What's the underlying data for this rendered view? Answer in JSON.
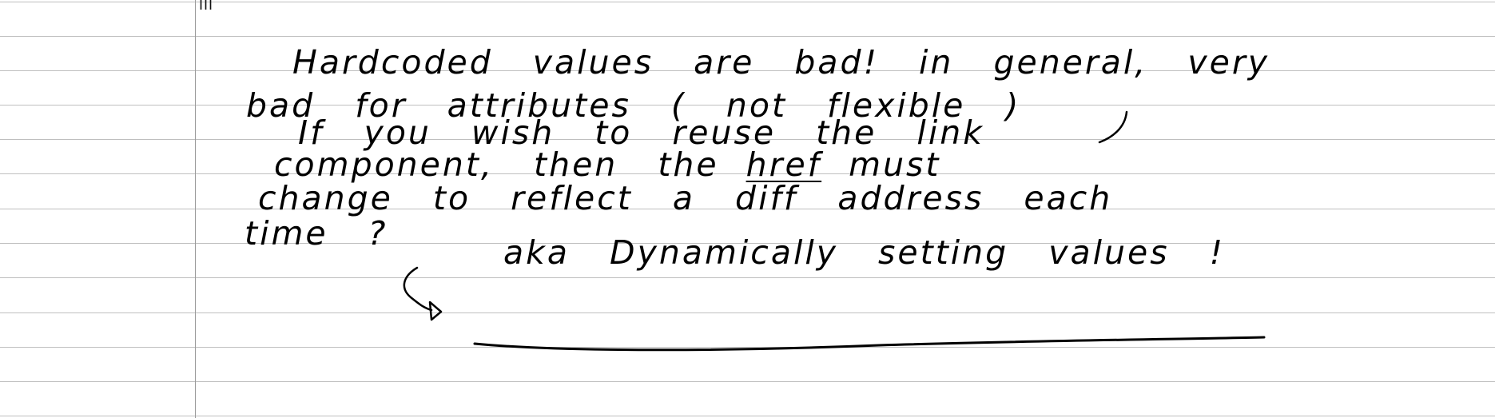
{
  "notebook": {
    "page_mark": "III",
    "lines": [
      "Hardcoded values are bad! in general, very",
      "bad for attributes ( not flexible )",
      "If you wish to reuse the link",
      "component, then the",
      "must",
      "change to reflect a diff address each",
      "time ?",
      "aka Dynamically setting values !"
    ],
    "emphasis": {
      "href_word": "href"
    }
  }
}
